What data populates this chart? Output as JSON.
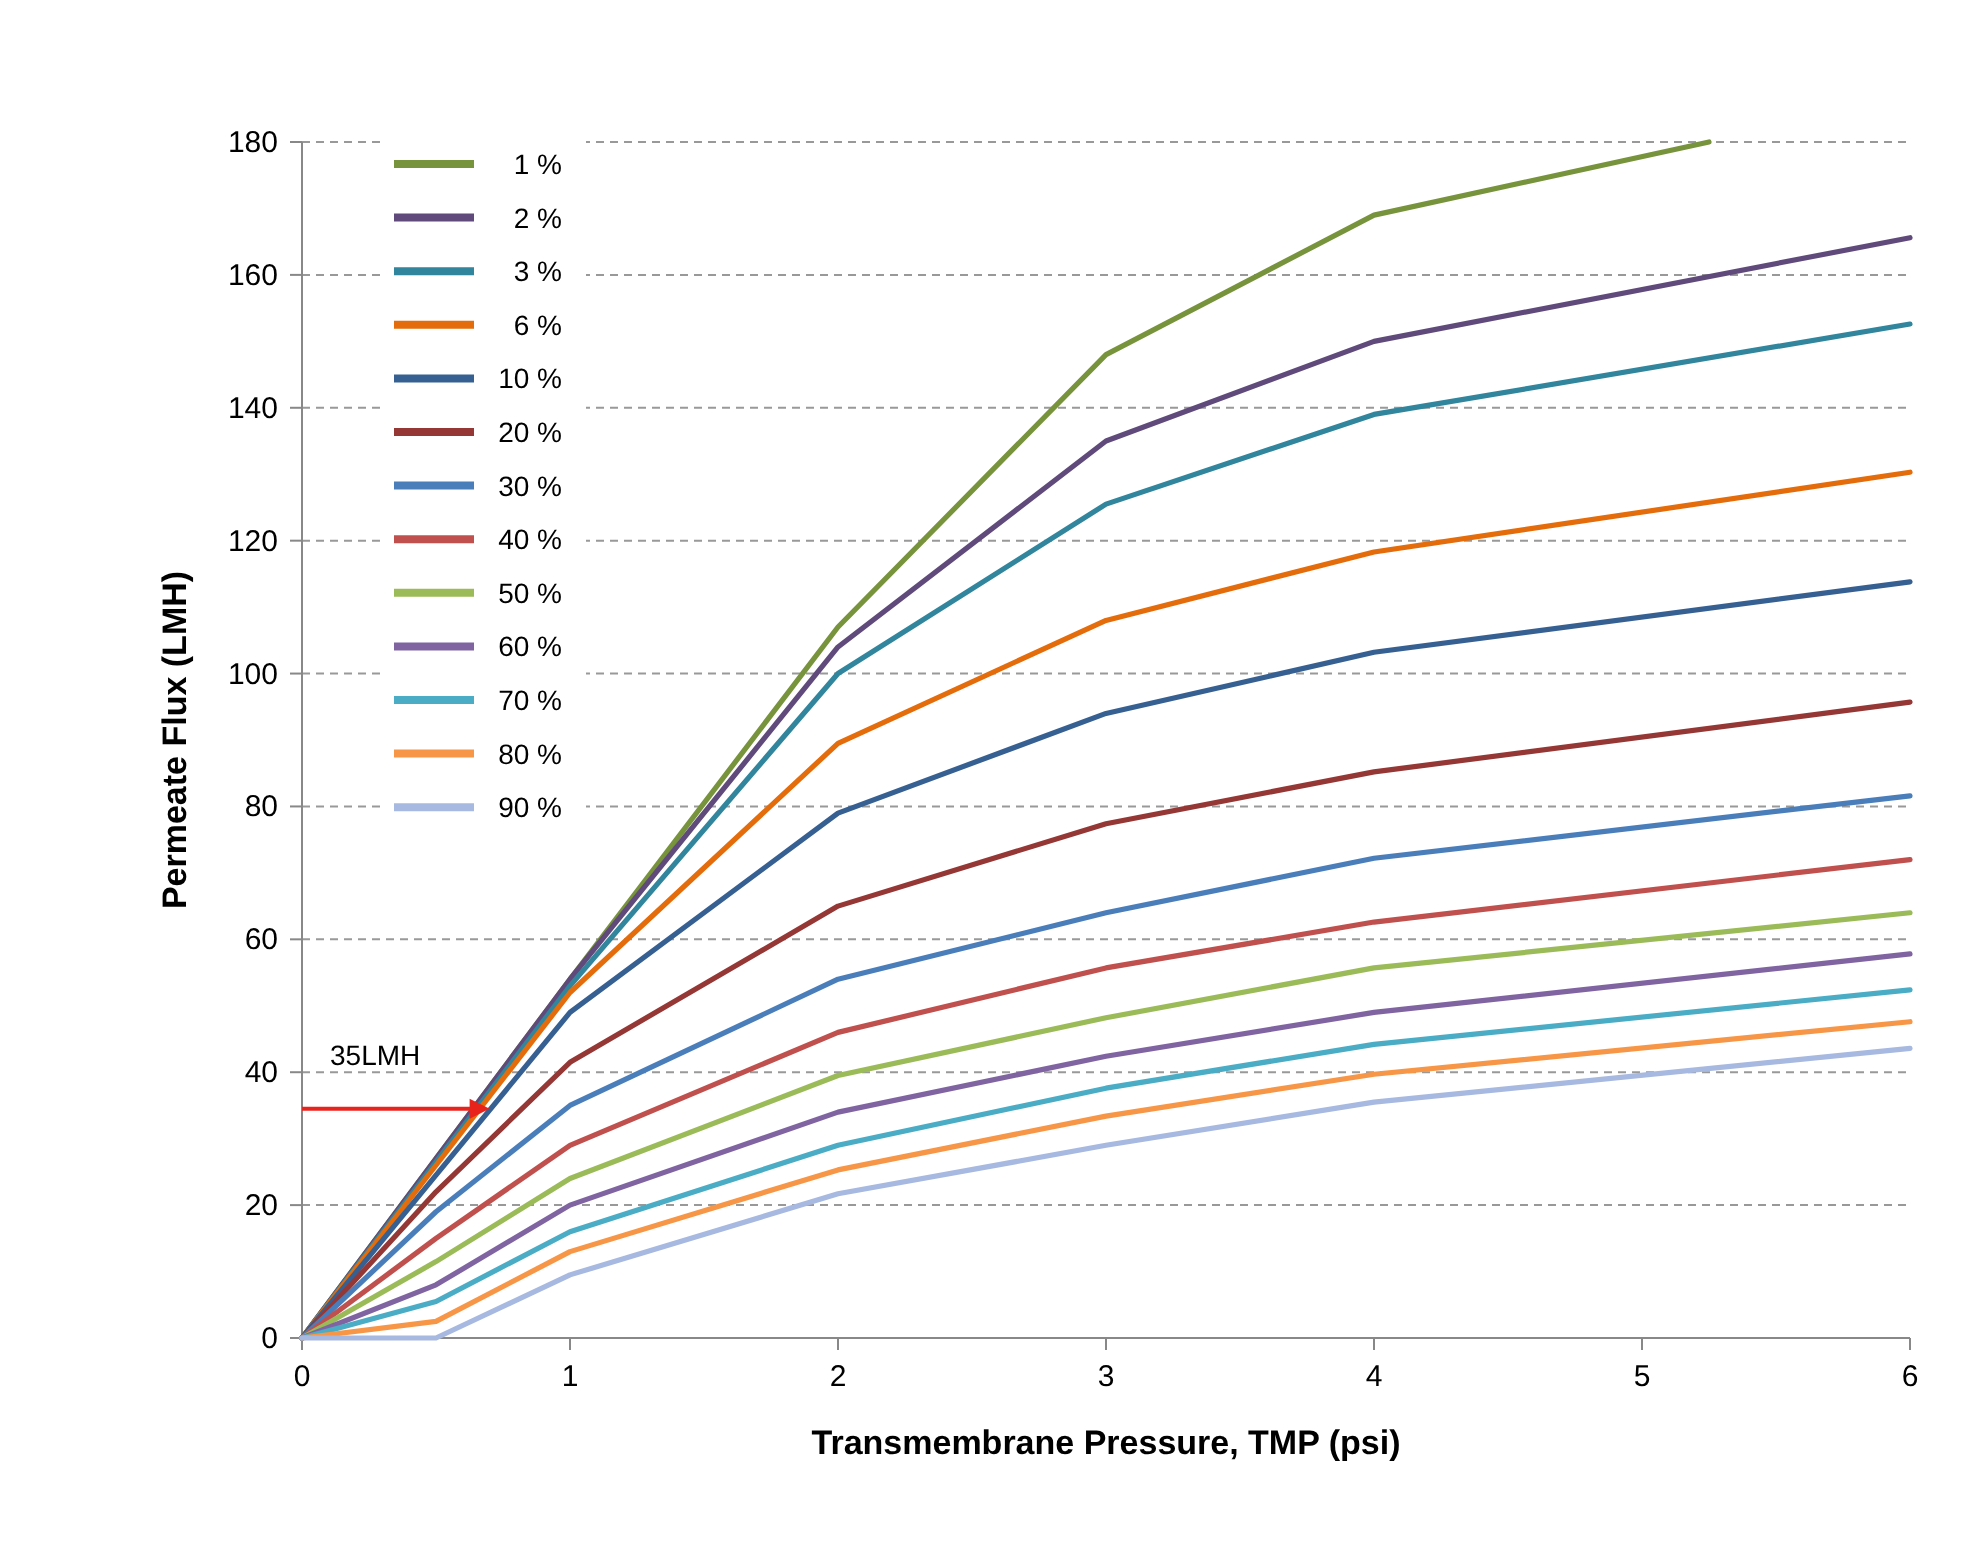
{
  "chart_data": {
    "type": "line",
    "xlabel": "Transmembrane Pressure, TMP (psi)",
    "ylabel": "Permeate Flux (LMH)",
    "x": [
      0,
      0.5,
      1,
      2,
      3,
      4,
      6
    ],
    "xlim": [
      0,
      6
    ],
    "xticks": [
      0,
      1,
      2,
      3,
      4,
      5,
      6
    ],
    "ylim": [
      0,
      180
    ],
    "yticks": [
      0,
      20,
      40,
      60,
      80,
      100,
      120,
      140,
      160,
      180
    ],
    "grid": "y",
    "legend": "top left",
    "marker": "none",
    "line_style": "solid",
    "annotations": [
      {
        "text": "35LMH",
        "x": 0.7,
        "y": 34.5
      }
    ],
    "series": [
      {
        "name": "1 %",
        "color": "#77933c",
        "x": [
          0,
          0.5,
          1,
          2,
          3,
          4,
          5.25
        ],
        "values": [
          0,
          27,
          54,
          107,
          148,
          169,
          180
        ]
      },
      {
        "name": "2 %",
        "color": "#604a7b",
        "values": [
          0,
          27,
          54,
          104,
          135,
          150,
          165.6
        ]
      },
      {
        "name": "3 %",
        "color": "#31859c",
        "values": [
          0,
          26.5,
          53,
          100,
          125.5,
          139,
          152.6
        ]
      },
      {
        "name": "6 %",
        "color": "#e46c0a",
        "values": [
          0,
          26,
          52,
          89.5,
          108,
          118.3,
          130.3
        ]
      },
      {
        "name": "10 %",
        "color": "#376092",
        "values": [
          0,
          24.5,
          49,
          79,
          94,
          103.2,
          113.8
        ]
      },
      {
        "name": "20 %",
        "color": "#953735",
        "values": [
          0,
          22,
          41.5,
          65,
          77.4,
          85.2,
          95.7
        ]
      },
      {
        "name": "30 %",
        "color": "#4a7ebb",
        "values": [
          0,
          19,
          35,
          54,
          64,
          72.2,
          81.6
        ]
      },
      {
        "name": "40 %",
        "color": "#c0504d",
        "values": [
          0,
          15,
          29,
          46,
          55.7,
          62.6,
          72
        ]
      },
      {
        "name": "50 %",
        "color": "#9bbb59",
        "values": [
          0,
          11.5,
          24,
          39.5,
          48.2,
          55.7,
          64
        ]
      },
      {
        "name": "60 %",
        "color": "#8064a2",
        "values": [
          0,
          8,
          20,
          34,
          42.4,
          49,
          57.8
        ]
      },
      {
        "name": "70 %",
        "color": "#4bacc6",
        "values": [
          0,
          5.5,
          16,
          29,
          37.6,
          44.2,
          52.4
        ]
      },
      {
        "name": "80 %",
        "color": "#f79646",
        "values": [
          0,
          2.5,
          13,
          25.3,
          33.4,
          39.7,
          47.6
        ]
      },
      {
        "name": "90 %",
        "color": "#a7b9e0",
        "values": [
          0,
          0,
          9.5,
          21.7,
          29,
          35.5,
          43.6
        ]
      }
    ]
  }
}
